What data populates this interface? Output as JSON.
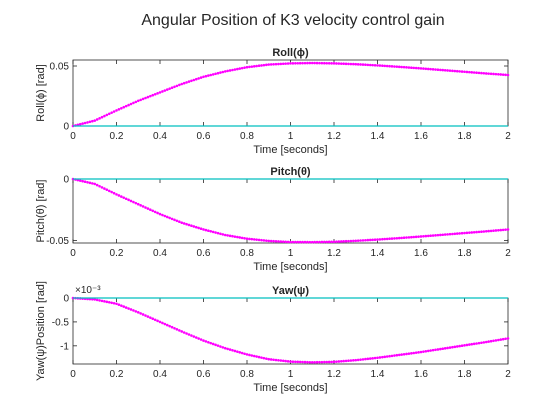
{
  "figure": {
    "title": "Angular Position of K3 velocity control gain"
  },
  "colors": {
    "response": "#ff00ff",
    "reference": "#00bfbf",
    "axes": "#262626"
  },
  "chart_data": [
    {
      "type": "scatter",
      "title": "Roll(ϕ)",
      "xlabel": "Time [seconds]",
      "ylabel": "Roll(ϕ) [rad]",
      "xlim": [
        0,
        2
      ],
      "ylim": [
        0,
        0.055
      ],
      "xticks": [
        0,
        0.2,
        0.4,
        0.6,
        0.8,
        1,
        1.2,
        1.4,
        1.6,
        1.8,
        2
      ],
      "xtick_labels": [
        "0",
        "0.2",
        "0.4",
        "0.6",
        "0.8",
        "1",
        "1.2",
        "1.4",
        "1.6",
        "1.8",
        "2"
      ],
      "yticks": [
        0,
        0.05
      ],
      "ytick_labels": [
        "0",
        "0.05"
      ],
      "exponent_label": "",
      "series": [
        {
          "style": "dots",
          "x": [
            0,
            0.1,
            0.2,
            0.3,
            0.4,
            0.5,
            0.6,
            0.7,
            0.8,
            0.9,
            1.0,
            1.1,
            1.2,
            1.3,
            1.4,
            1.5,
            1.6,
            1.7,
            1.8,
            1.9,
            2.0
          ],
          "y": [
            0,
            0.0045,
            0.013,
            0.021,
            0.028,
            0.035,
            0.041,
            0.0455,
            0.049,
            0.0512,
            0.0522,
            0.0525,
            0.0522,
            0.0515,
            0.0505,
            0.0493,
            0.048,
            0.0466,
            0.0452,
            0.0438,
            0.0425
          ]
        },
        {
          "style": "line",
          "x": [
            0,
            2
          ],
          "y": [
            0,
            0
          ]
        }
      ]
    },
    {
      "type": "scatter",
      "title": "Pitch(θ)",
      "xlabel": "Time [seconds]",
      "ylabel": "Pitch(θ) [rad]",
      "xlim": [
        0,
        2
      ],
      "ylim": [
        -0.052,
        0
      ],
      "xticks": [
        0,
        0.2,
        0.4,
        0.6,
        0.8,
        1,
        1.2,
        1.4,
        1.6,
        1.8,
        2
      ],
      "xtick_labels": [
        "0",
        "0.2",
        "0.4",
        "0.6",
        "0.8",
        "1",
        "1.2",
        "1.4",
        "1.6",
        "1.8",
        "2"
      ],
      "yticks": [
        -0.05,
        0
      ],
      "ytick_labels": [
        "-0.05",
        "0"
      ],
      "exponent_label": "",
      "series": [
        {
          "style": "dots",
          "x": [
            0,
            0.1,
            0.2,
            0.3,
            0.4,
            0.5,
            0.6,
            0.7,
            0.8,
            0.9,
            1.0,
            1.1,
            1.2,
            1.3,
            1.4,
            1.5,
            1.6,
            1.7,
            1.8,
            1.9,
            2.0
          ],
          "y": [
            0,
            -0.004,
            -0.0125,
            -0.0205,
            -0.0285,
            -0.0355,
            -0.041,
            -0.0455,
            -0.0485,
            -0.0503,
            -0.0512,
            -0.0513,
            -0.051,
            -0.0502,
            -0.0492,
            -0.048,
            -0.0467,
            -0.0453,
            -0.0439,
            -0.0425,
            -0.041
          ]
        },
        {
          "style": "line",
          "x": [
            0,
            2
          ],
          "y": [
            0,
            0
          ]
        }
      ]
    },
    {
      "type": "scatter",
      "title": "Yaw(ψ)",
      "xlabel": "Time [seconds]",
      "ylabel": "Yaw(ψ)Position [rad]",
      "xlim": [
        0,
        2
      ],
      "ylim": [
        -1.38,
        0
      ],
      "xticks": [
        0,
        0.2,
        0.4,
        0.6,
        0.8,
        1,
        1.2,
        1.4,
        1.6,
        1.8,
        2
      ],
      "xtick_labels": [
        "0",
        "0.2",
        "0.4",
        "0.6",
        "0.8",
        "1",
        "1.2",
        "1.4",
        "1.6",
        "1.8",
        "2"
      ],
      "yticks": [
        -1,
        -0.5,
        0
      ],
      "ytick_labels": [
        "-1",
        "-0.5",
        "0"
      ],
      "exponent_label": "×10⁻³",
      "series": [
        {
          "style": "dots",
          "x": [
            0,
            0.1,
            0.2,
            0.3,
            0.4,
            0.5,
            0.6,
            0.7,
            0.8,
            0.9,
            1.0,
            1.1,
            1.2,
            1.3,
            1.4,
            1.5,
            1.6,
            1.7,
            1.8,
            1.9,
            2.0
          ],
          "y": [
            0,
            -0.03,
            -0.12,
            -0.3,
            -0.5,
            -0.7,
            -0.89,
            -1.05,
            -1.18,
            -1.28,
            -1.33,
            -1.345,
            -1.335,
            -1.3,
            -1.25,
            -1.19,
            -1.13,
            -1.06,
            -0.99,
            -0.92,
            -0.845
          ]
        },
        {
          "style": "line",
          "x": [
            0,
            2
          ],
          "y": [
            0,
            0
          ]
        }
      ]
    }
  ]
}
